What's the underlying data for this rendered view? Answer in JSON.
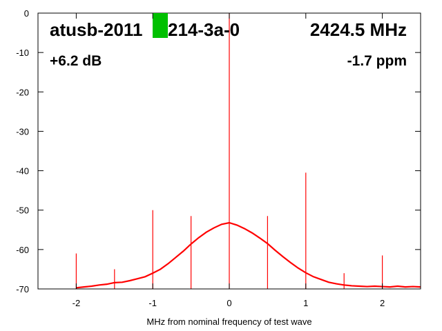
{
  "chart_data": {
    "type": "line",
    "title_left": "atusb-2011",
    "title_right": "214-3a-0",
    "frequency": "2424.5 MHz",
    "gain": "+6.2 dB",
    "offset": "-1.7 ppm",
    "xlabel": "MHz from nominal frequency of test wave",
    "color": "#ff0000",
    "xlim": [
      -2.5,
      2.5
    ],
    "ylim": [
      -70,
      0
    ],
    "xticks": [
      -2,
      -1,
      0,
      1,
      2
    ],
    "yticks": [
      0,
      -10,
      -20,
      -30,
      -40,
      -50,
      -60,
      -70
    ],
    "x": [
      -2.0,
      -1.9,
      -1.8,
      -1.7,
      -1.6,
      -1.5,
      -1.4,
      -1.3,
      -1.2,
      -1.1,
      -1.0,
      -0.9,
      -0.8,
      -0.7,
      -0.6,
      -0.5,
      -0.4,
      -0.3,
      -0.2,
      -0.1,
      0.0,
      0.1,
      0.2,
      0.3,
      0.4,
      0.5,
      0.6,
      0.7,
      0.8,
      0.9,
      1.0,
      1.1,
      1.2,
      1.3,
      1.4,
      1.5,
      1.6,
      1.7,
      1.8,
      1.9,
      2.0,
      2.1,
      2.2,
      2.3,
      2.4,
      2.5
    ],
    "values": [
      -69.7,
      -69.5,
      -69.3,
      -69.0,
      -68.8,
      -68.4,
      -68.3,
      -67.9,
      -67.4,
      -66.9,
      -66.0,
      -65.0,
      -63.6,
      -62.0,
      -60.4,
      -58.6,
      -57.0,
      -55.6,
      -54.5,
      -53.6,
      -53.2,
      -53.8,
      -54.7,
      -55.8,
      -57.1,
      -58.5,
      -60.2,
      -61.8,
      -63.3,
      -64.7,
      -65.9,
      -66.9,
      -67.6,
      -68.3,
      -68.7,
      -69.0,
      -69.2,
      -69.3,
      -69.4,
      -69.3,
      -69.4,
      -69.5,
      -69.3,
      -69.5,
      -69.4,
      -69.5
    ],
    "spikes": {
      "x": [
        -2.0,
        -1.5,
        -1.0,
        -0.5,
        0.0,
        0.5,
        1.0,
        1.5,
        2.0
      ],
      "values": [
        -61,
        -65,
        -50,
        -51.5,
        0,
        -51.5,
        -40.5,
        -66,
        -61.5
      ]
    },
    "highlight_color": "#00c000"
  }
}
